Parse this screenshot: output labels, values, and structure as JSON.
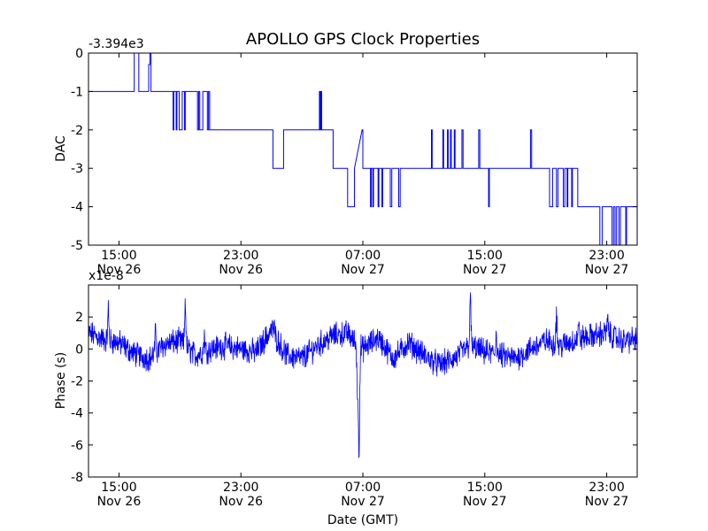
{
  "title": "APOLLO GPS Clock Properties",
  "line_color": "#0000ff",
  "chart_data": [
    {
      "type": "line",
      "name": "dac",
      "ylabel": "DAC",
      "xlabel": "",
      "offset_label": "-3.394e3",
      "ylim": [
        -5,
        0
      ],
      "xlim": [
        0,
        72
      ],
      "yticks": [
        {
          "v": 0,
          "label": "0"
        },
        {
          "v": -1,
          "label": "-1"
        },
        {
          "v": -2,
          "label": "-2"
        },
        {
          "v": -3,
          "label": "-3"
        },
        {
          "v": -4,
          "label": "-4"
        },
        {
          "v": -5,
          "label": "-5"
        }
      ],
      "xticks": [
        {
          "h": 4,
          "time": "15:00",
          "date": "Nov 26"
        },
        {
          "h": 20,
          "time": "23:00",
          "date": "Nov 26"
        },
        {
          "h": 36,
          "time": "07:00",
          "date": "Nov 27"
        },
        {
          "h": 52,
          "time": "15:00",
          "date": "Nov 27"
        },
        {
          "h": 68,
          "time": "23:00",
          "date": "Nov 27"
        }
      ],
      "steps": [
        [
          0,
          -1
        ],
        [
          6,
          0
        ],
        [
          6.6,
          -1
        ],
        [
          7.9,
          -0.3
        ],
        [
          8.05,
          0
        ],
        [
          8.2,
          -1
        ],
        [
          11,
          -1
        ],
        [
          11.1,
          -2
        ],
        [
          11.2,
          -1
        ],
        [
          11.4,
          -1
        ],
        [
          11.5,
          -2
        ],
        [
          11.6,
          -1
        ],
        [
          11.9,
          -2
        ],
        [
          12.3,
          -1
        ],
        [
          12.6,
          -2
        ],
        [
          12.7,
          -1
        ],
        [
          14.3,
          -2
        ],
        [
          14.45,
          -1
        ],
        [
          14.6,
          -2
        ],
        [
          15,
          -1
        ],
        [
          15.6,
          -2
        ],
        [
          15.75,
          -1
        ],
        [
          15.9,
          -2
        ],
        [
          18.5,
          -2
        ],
        [
          20,
          -2
        ],
        [
          24.2,
          -3
        ],
        [
          25.6,
          -2
        ],
        [
          30.3,
          -1
        ],
        [
          30.4,
          -2
        ],
        [
          30.5,
          -1
        ],
        [
          30.6,
          -2
        ],
        [
          32.1,
          -3
        ],
        [
          34,
          -4
        ],
        [
          34.9,
          -3
        ],
        [
          35.9,
          -2
        ],
        [
          36,
          -3
        ],
        [
          37,
          -4
        ],
        [
          37.1,
          -3
        ],
        [
          37.3,
          -4
        ],
        [
          37.4,
          -3
        ],
        [
          38,
          -4
        ],
        [
          38.1,
          -3
        ],
        [
          38.5,
          -4
        ],
        [
          38.6,
          -3
        ],
        [
          39.6,
          -4
        ],
        [
          39.8,
          -3
        ],
        [
          40.7,
          -4
        ],
        [
          40.9,
          -3
        ],
        [
          41.3,
          -3
        ],
        [
          45,
          -2
        ],
        [
          45.1,
          -3
        ],
        [
          46.5,
          -2
        ],
        [
          46.6,
          -3
        ],
        [
          47.1,
          -2
        ],
        [
          47.2,
          -3
        ],
        [
          47.5,
          -2
        ],
        [
          47.6,
          -3
        ],
        [
          48,
          -2
        ],
        [
          48.1,
          -3
        ],
        [
          49,
          -2
        ],
        [
          49.15,
          -3
        ],
        [
          51.2,
          -2
        ],
        [
          51.35,
          -3
        ],
        [
          52.5,
          -4
        ],
        [
          52.6,
          -3
        ],
        [
          57,
          -3
        ],
        [
          58,
          -2
        ],
        [
          58.15,
          -3
        ],
        [
          60.5,
          -4
        ],
        [
          60.9,
          -3
        ],
        [
          61.4,
          -4
        ],
        [
          61.6,
          -3
        ],
        [
          62.3,
          -4
        ],
        [
          62.5,
          -3
        ],
        [
          62.8,
          -4
        ],
        [
          62.9,
          -3
        ],
        [
          63.4,
          -4
        ],
        [
          63.5,
          -3
        ],
        [
          64.2,
          -4
        ],
        [
          67.1,
          -5
        ],
        [
          67.4,
          -4
        ],
        [
          68.7,
          -5
        ],
        [
          68.9,
          -4
        ],
        [
          69.1,
          -5
        ],
        [
          69.3,
          -4
        ],
        [
          69.6,
          -5
        ],
        [
          69.8,
          -4
        ],
        [
          70.5,
          -5
        ],
        [
          70.6,
          -4
        ],
        [
          71.9,
          -4
        ]
      ]
    },
    {
      "type": "line",
      "name": "phase",
      "ylabel": "Phase (s)",
      "xlabel": "Date (GMT)",
      "offset_label": "x1e-8",
      "ylim": [
        -8,
        4
      ],
      "xlim": [
        0,
        72
      ],
      "yticks": [
        {
          "v": 2,
          "label": "2"
        },
        {
          "v": 0,
          "label": "0"
        },
        {
          "v": -2,
          "label": "-2"
        },
        {
          "v": -4,
          "label": "-4"
        },
        {
          "v": -6,
          "label": "-6"
        },
        {
          "v": -8,
          "label": "-8"
        }
      ],
      "xticks": [
        {
          "h": 4,
          "time": "15:00",
          "date": "Nov 26"
        },
        {
          "h": 20,
          "time": "23:00",
          "date": "Nov 26"
        },
        {
          "h": 36,
          "time": "07:00",
          "date": "Nov 27"
        },
        {
          "h": 52,
          "time": "15:00",
          "date": "Nov 27"
        },
        {
          "h": 68,
          "time": "23:00",
          "date": "Nov 27"
        }
      ],
      "baseline": [
        [
          0,
          1.0
        ],
        [
          2,
          0.6
        ],
        [
          4,
          0.4
        ],
        [
          6,
          -0.3
        ],
        [
          8,
          -0.6
        ],
        [
          10,
          0.3
        ],
        [
          12,
          0.5
        ],
        [
          14,
          -0.4
        ],
        [
          16,
          0.0
        ],
        [
          18,
          0.2
        ],
        [
          20,
          0.0
        ],
        [
          22,
          -0.2
        ],
        [
          24,
          1.2
        ],
        [
          26,
          -0.4
        ],
        [
          28,
          -0.6
        ],
        [
          30,
          0.2
        ],
        [
          32,
          0.8
        ],
        [
          34,
          1.0
        ],
        [
          35,
          0.4
        ],
        [
          36,
          0.0
        ],
        [
          38,
          0.7
        ],
        [
          40,
          -0.6
        ],
        [
          42,
          0.4
        ],
        [
          44,
          -0.4
        ],
        [
          46,
          -1.0
        ],
        [
          48,
          -0.6
        ],
        [
          50,
          0.2
        ],
        [
          52,
          -0.2
        ],
        [
          54,
          -0.4
        ],
        [
          56,
          -0.6
        ],
        [
          58,
          0.0
        ],
        [
          60,
          0.5
        ],
        [
          62,
          0.2
        ],
        [
          64,
          0.6
        ],
        [
          66,
          0.8
        ],
        [
          68,
          1.0
        ],
        [
          70,
          0.5
        ],
        [
          72,
          0.6
        ]
      ],
      "spikes": [
        [
          2.6,
          2.6
        ],
        [
          8.8,
          1.2
        ],
        [
          12.7,
          3.6
        ],
        [
          15.2,
          1.0
        ],
        [
          24.3,
          1.5
        ],
        [
          35.3,
          -3.5
        ],
        [
          35.5,
          -7.2
        ],
        [
          50.1,
          3.7
        ],
        [
          53.5,
          1.3
        ],
        [
          61.4,
          2.5
        ],
        [
          64.3,
          1.6
        ],
        [
          68.1,
          1.9
        ]
      ]
    }
  ]
}
